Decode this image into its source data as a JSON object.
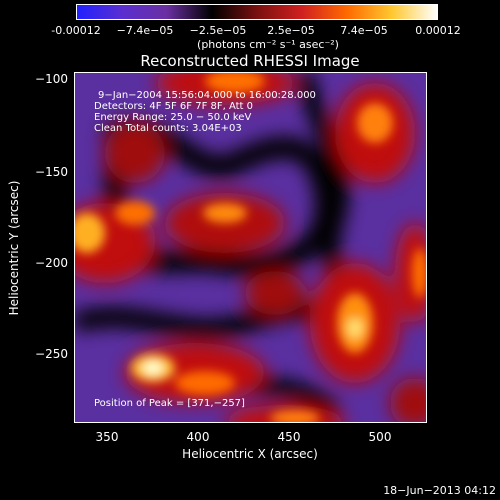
{
  "colorbar": {
    "tick_labels": [
      "-0.00012",
      "−7.4e−05",
      "−2.5e−05",
      "2.5e−05",
      "7.4e−05",
      "0.00012"
    ],
    "units": "(photons cm⁻² s⁻¹ asec⁻²)",
    "colors": [
      "#2020ff",
      "#5a2fd0",
      "#6a2fa0",
      "#000000",
      "#7a1010",
      "#d02020",
      "#ff6a00",
      "#ffc830",
      "#ffffff"
    ]
  },
  "title": "Reconstructed RHESSI Image",
  "info": {
    "line1": "9−Jan−2004 15:56:04.000 to 16:00:28.000",
    "line2": "Detectors: 4F 5F 6F 7F 8F, Att 0",
    "line3": "Energy Range: 25.0 − 50.0 keV",
    "line4": "Clean     Total counts: 3.04E+03"
  },
  "peak_label": "Position of Peak = [371,−257]",
  "axes": {
    "xlabel": "Heliocentric X (arcsec)",
    "ylabel": "Heliocentric Y (arcsec)",
    "xticks": [
      "350",
      "400",
      "450",
      "500"
    ],
    "yticks": [
      "−100",
      "−150",
      "−200",
      "−250"
    ]
  },
  "footer": "18−Jun−2013 04:12"
}
